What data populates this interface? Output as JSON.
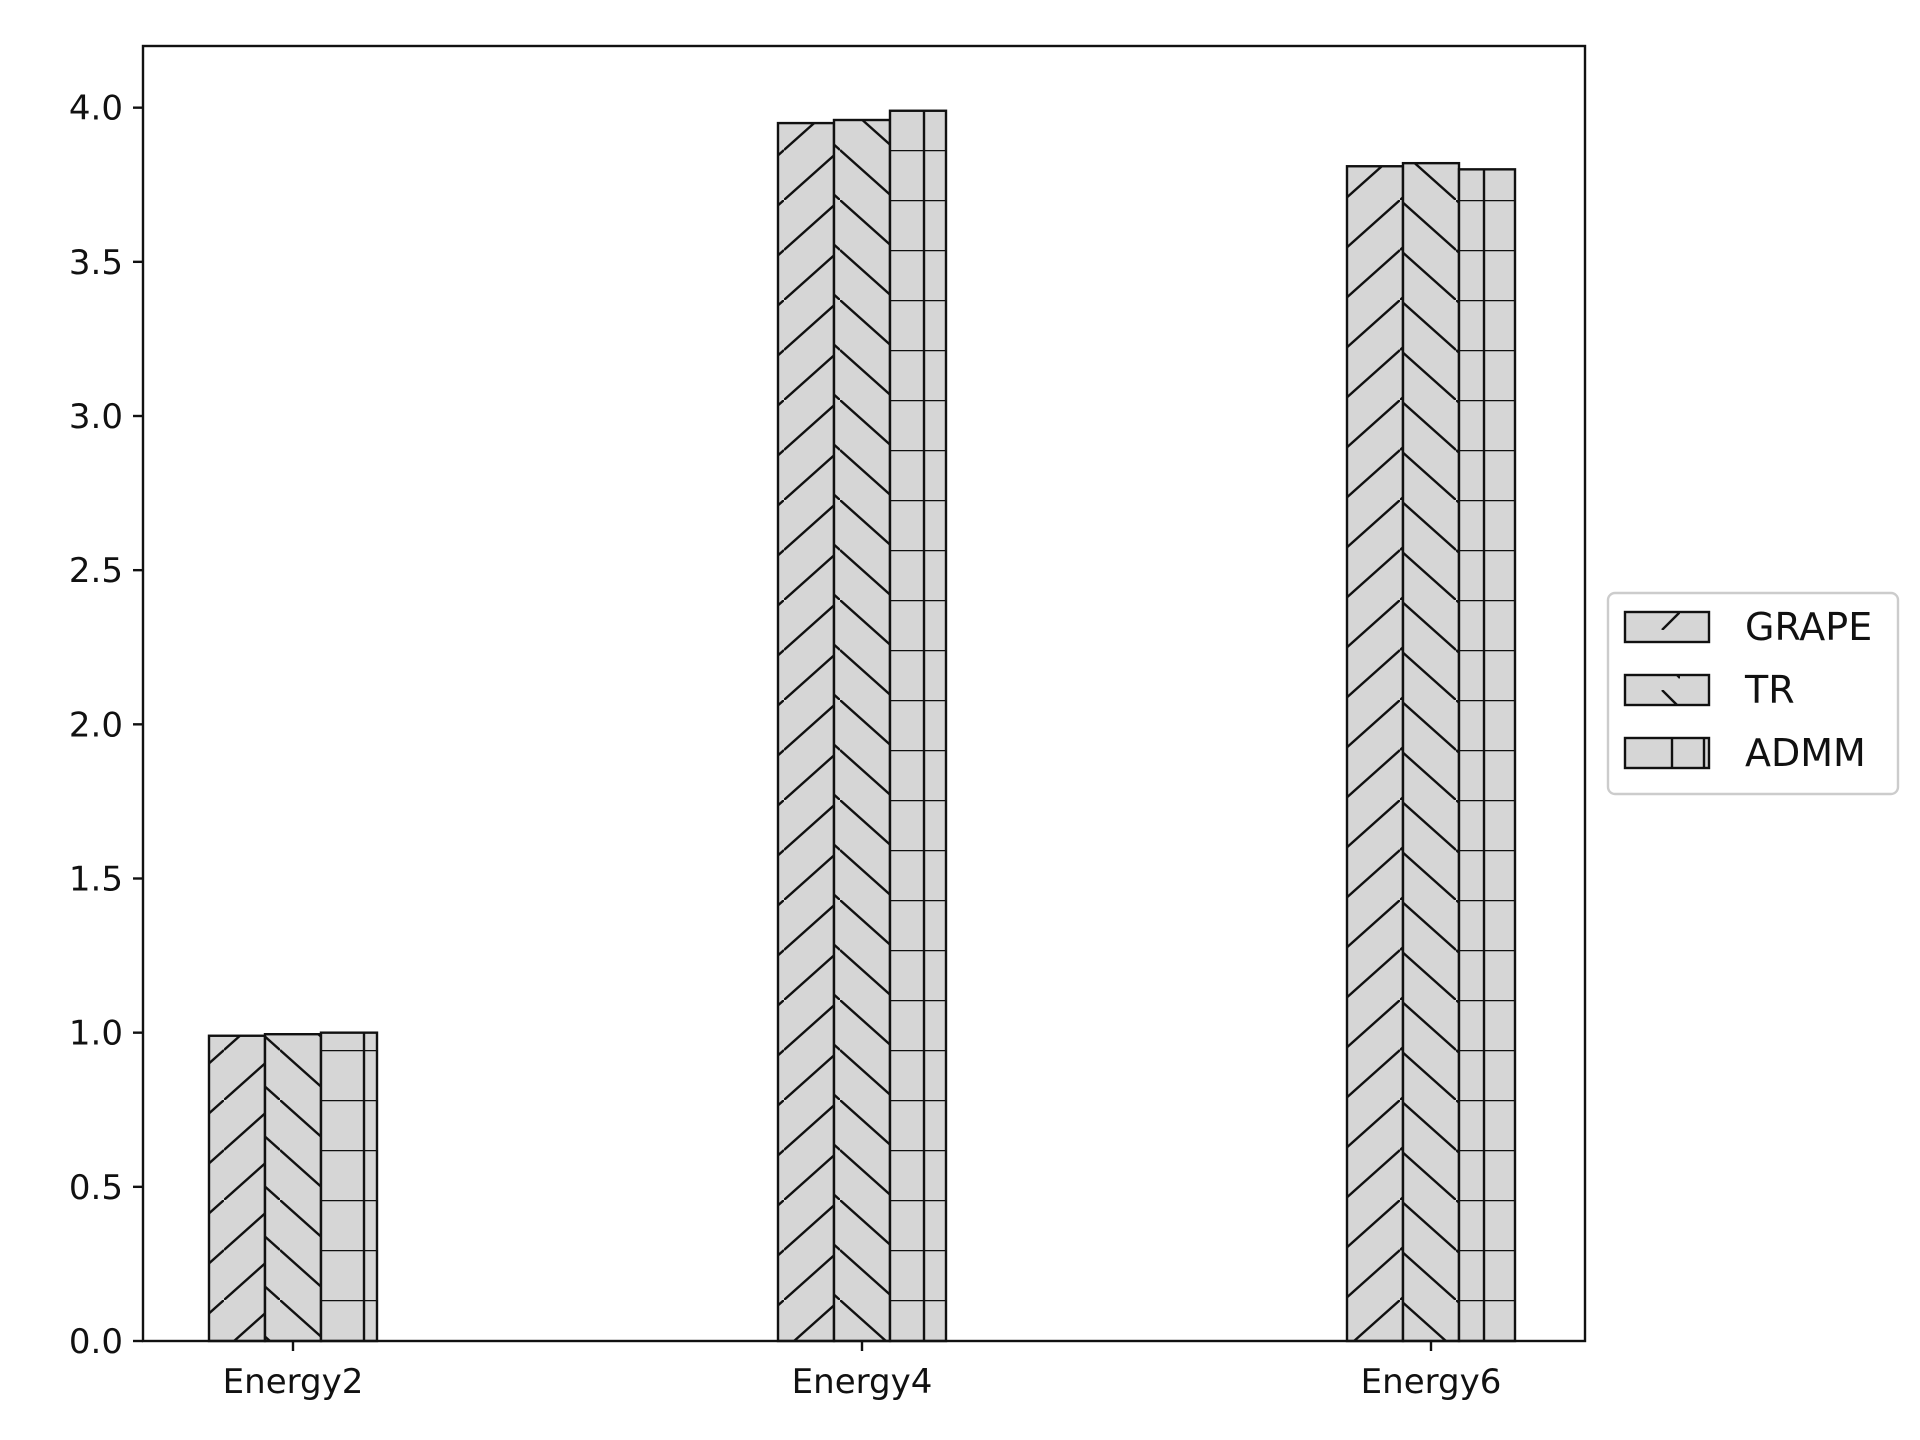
{
  "chart_data": {
    "type": "bar",
    "title": "",
    "xlabel": "",
    "ylabel": "",
    "categories": [
      "Energy2",
      "Energy4",
      "Energy6"
    ],
    "series": [
      {
        "name": "GRAPE",
        "values": [
          0.99,
          3.95,
          3.81
        ],
        "hatch": "slash"
      },
      {
        "name": "TR",
        "values": [
          0.995,
          3.96,
          3.82
        ],
        "hatch": "backslash"
      },
      {
        "name": "ADMM",
        "values": [
          1.0,
          3.99,
          3.8
        ],
        "hatch": "grid"
      }
    ],
    "ylim": [
      0,
      4.2
    ],
    "yticks": [
      0.0,
      0.5,
      1.0,
      1.5,
      2.0,
      2.5,
      3.0,
      3.5,
      4.0
    ],
    "ytick_labels": [
      "0.0",
      "0.5",
      "1.0",
      "1.5",
      "2.0",
      "2.5",
      "3.0",
      "3.5",
      "4.0"
    ],
    "grid": false,
    "legend_position": "right-outside",
    "colors": {
      "fill": "#d6d6d6",
      "edge": "#111111",
      "background": "#ffffff"
    }
  }
}
